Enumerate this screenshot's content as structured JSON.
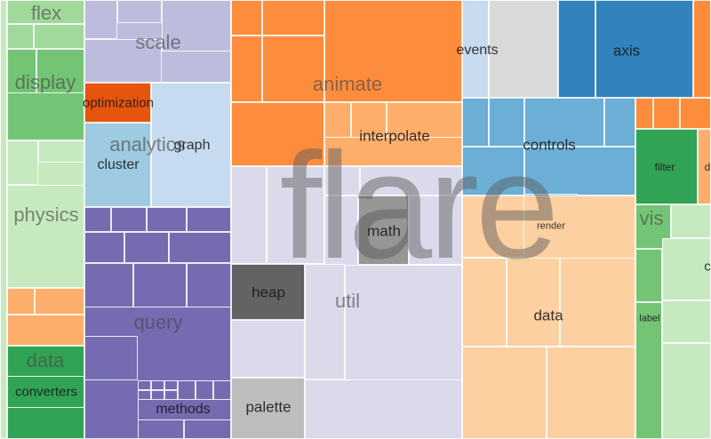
{
  "root_label": "flare",
  "labels": {
    "flex": "flex",
    "display": "display",
    "physics": "physics",
    "data_left": "data",
    "converters": "converters",
    "scale": "scale",
    "optimization": "optimization",
    "analytics": "analytics",
    "graph": "graph",
    "cluster": "cluster",
    "query": "query",
    "methods": "methods",
    "animate": "animate",
    "interpolate": "interpolate",
    "events": "events",
    "axis": "axis",
    "controls": "controls",
    "render": "render",
    "math": "math",
    "heap": "heap",
    "util": "util",
    "palette": "palette",
    "data_vis": "data",
    "vis": "vis",
    "filter": "filter",
    "label": "label",
    "cut_d": "d",
    "cut_o": "c"
  },
  "colors": {
    "physics_green": "#c7e9c0",
    "display_green": "#74c476",
    "flex_green": "#a1d99b",
    "data_green": "#31a354",
    "scale_lavender": "#bcbddc",
    "analytics_blue": "#c6dbef",
    "cluster_blue": "#9ecae1",
    "optimization_orange": "#e6550d",
    "query_purple": "#756bb1",
    "animate_orange": "#fd8d3c",
    "interpolate_orange": "#fdae6b",
    "events_gray": "#d9d9d9",
    "axis_blue": "#3182bd",
    "controls_blue": "#6baed6",
    "util_lavender": "#dadaeb",
    "math_gray": "#969696",
    "heap_gray": "#636363",
    "palette_gray": "#bdbdbd",
    "vis_data_peach": "#fdd0a2",
    "filter_green": "#31a354"
  }
}
